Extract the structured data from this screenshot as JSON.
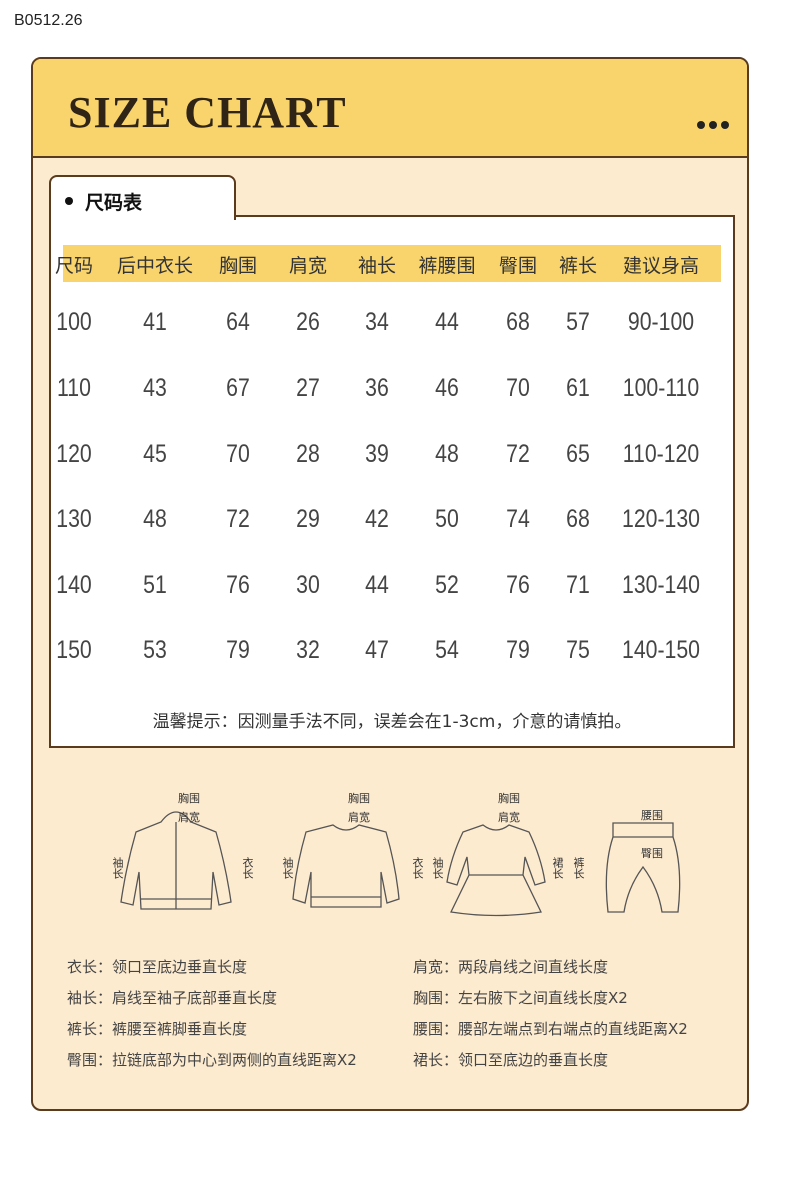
{
  "product_code": "B0512.26",
  "header": {
    "title": "SIZE CHART"
  },
  "tab": {
    "label": "尺码表"
  },
  "table": {
    "columns": [
      "尺码",
      "后中衣长",
      "胸围",
      "肩宽",
      "袖长",
      "裤腰围",
      "臀围",
      "裤长",
      "建议身高"
    ],
    "rows": [
      [
        "100",
        "41",
        "64",
        "26",
        "34",
        "44",
        "68",
        "57",
        "90-100"
      ],
      [
        "110",
        "43",
        "67",
        "27",
        "36",
        "46",
        "70",
        "61",
        "100-110"
      ],
      [
        "120",
        "45",
        "70",
        "28",
        "39",
        "48",
        "72",
        "65",
        "110-120"
      ],
      [
        "130",
        "48",
        "72",
        "29",
        "42",
        "50",
        "74",
        "68",
        "120-130"
      ],
      [
        "140",
        "51",
        "76",
        "30",
        "44",
        "52",
        "76",
        "71",
        "130-140"
      ],
      [
        "150",
        "53",
        "79",
        "32",
        "47",
        "54",
        "79",
        "75",
        "140-150"
      ]
    ]
  },
  "note": "温馨提示：因测量手法不同，误差会在1-3cm，介意的请慎拍。",
  "illustrations": [
    {
      "name": "jacket",
      "labels": [
        "胸围",
        "肩宽",
        "袖长",
        "衣长"
      ]
    },
    {
      "name": "sweater",
      "labels": [
        "胸围",
        "肩宽",
        "袖长",
        "衣长"
      ]
    },
    {
      "name": "dress",
      "labels": [
        "胸围",
        "肩宽",
        "袖长",
        "裙长"
      ]
    },
    {
      "name": "pants",
      "labels": [
        "腰围",
        "臀围",
        "裤长"
      ]
    }
  ],
  "definitions": [
    [
      "衣长：领口至底边垂直长度",
      "肩宽：两段肩线之间直线长度"
    ],
    [
      "袖长：肩线至袖子底部垂直长度",
      "胸围：左右腋下之间直线长度X2"
    ],
    [
      "裤长：裤腰至裤脚垂直长度",
      "腰围：腰部左端点到右端点的直线距离X2"
    ],
    [
      "臀围：拉链底部为中心到两侧的直线距离X2",
      "裙长：领口至底边的垂直长度"
    ]
  ],
  "colors": {
    "header": "#f9d46c",
    "body": "#fdebd0",
    "border": "#5a3b1e"
  }
}
